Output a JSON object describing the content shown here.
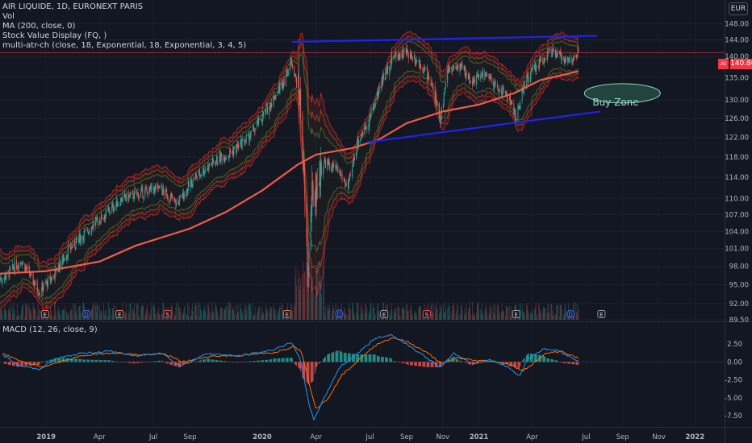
{
  "legend": {
    "symbol": "AIR LIQUIDE, 1D, EURONEXT PARIS",
    "vol": "Vol",
    "ma": "MA (200, close, 0)",
    "svd": "Stock Value Display (FQ, )",
    "mac": "multi-atr-ch (close, 18, Exponential, 18, Exponential, 3, 4, 5)"
  },
  "macd_legend": "MACD (12, 26, close, 9)",
  "currency": "EUR",
  "last_price": "140.86",
  "symbol_tag": "AI",
  "buy_zone_label": "Buy Zone",
  "colors": {
    "background": "#131722",
    "up": "#26a69a",
    "down": "#ef5350",
    "ma": "#f05a4a",
    "trendline": "#2222ee",
    "band_outer": "#c62828",
    "band_inner": "#7a2a20",
    "macd": "#2196f3",
    "signal": "#ff6d00"
  },
  "chart_data": [
    {
      "type": "candlestick",
      "title": "AIR LIQUIDE, 1D, EURONEXT PARIS",
      "y_axis_ticks": [
        "148.00",
        "144.00",
        "140.00",
        "135.00",
        "130.00",
        "126.00",
        "122.00",
        "118.00",
        "114.00",
        "110.00",
        "107.00",
        "104.00",
        "101.00",
        "98.00",
        "95.00",
        "92.00",
        "89.50"
      ],
      "y_log_scale": true,
      "x_axis_ticks": [
        "2019",
        "Apr",
        "Jul",
        "Sep",
        "2020",
        "Apr",
        "Jul",
        "Sep",
        "Nov",
        "2021",
        "Apr",
        "Jul",
        "Sep",
        "Nov",
        "2022"
      ],
      "x_range": [
        "2018-10-15",
        "2022-02-20"
      ],
      "ylim": [
        89.5,
        152
      ],
      "close_path": [
        [
          "2018-10-20",
          96
        ],
        [
          "2018-11-20",
          99
        ],
        [
          "2018-12-20",
          94
        ],
        [
          "2019-01-10",
          96
        ],
        [
          "2019-02-10",
          101
        ],
        [
          "2019-03-10",
          104
        ],
        [
          "2019-04-10",
          107
        ],
        [
          "2019-05-10",
          110
        ],
        [
          "2019-06-10",
          111
        ],
        [
          "2019-07-10",
          112
        ],
        [
          "2019-08-10",
          109
        ],
        [
          "2019-09-10",
          114
        ],
        [
          "2019-10-10",
          117
        ],
        [
          "2019-11-10",
          119
        ],
        [
          "2019-12-10",
          122
        ],
        [
          "2020-01-10",
          128
        ],
        [
          "2020-02-05",
          134
        ],
        [
          "2020-02-20",
          139
        ],
        [
          "2020-03-05",
          130
        ],
        [
          "2020-03-18",
          96
        ],
        [
          "2020-03-25",
          110
        ],
        [
          "2020-04-15",
          117
        ],
        [
          "2020-05-10",
          115
        ],
        [
          "2020-05-25",
          112
        ],
        [
          "2020-06-10",
          121
        ],
        [
          "2020-07-01",
          126
        ],
        [
          "2020-07-20",
          134
        ],
        [
          "2020-08-10",
          140
        ],
        [
          "2020-09-01",
          141
        ],
        [
          "2020-09-20",
          139
        ],
        [
          "2020-10-10",
          135
        ],
        [
          "2020-10-28",
          126
        ],
        [
          "2020-11-10",
          137
        ],
        [
          "2020-11-30",
          138
        ],
        [
          "2020-12-20",
          134
        ],
        [
          "2021-01-10",
          136
        ],
        [
          "2021-01-30",
          133
        ],
        [
          "2021-02-20",
          131
        ],
        [
          "2021-03-05",
          126
        ],
        [
          "2021-03-20",
          134
        ],
        [
          "2021-04-10",
          138
        ],
        [
          "2021-04-30",
          141
        ],
        [
          "2021-05-20",
          140
        ],
        [
          "2021-06-08",
          139
        ],
        [
          "2021-06-18",
          141
        ]
      ],
      "ma200_path": [
        [
          "2018-10-15",
          96.8
        ],
        [
          "2019-01-01",
          97.2
        ],
        [
          "2019-04-01",
          98.8
        ],
        [
          "2019-06-01",
          101.5
        ],
        [
          "2019-09-01",
          104.5
        ],
        [
          "2019-11-01",
          107.5
        ],
        [
          "2020-01-01",
          111.5
        ],
        [
          "2020-03-01",
          116.5
        ],
        [
          "2020-04-01",
          118.5
        ],
        [
          "2020-06-01",
          119.8
        ],
        [
          "2020-07-15",
          121.5
        ],
        [
          "2020-09-01",
          125
        ],
        [
          "2020-11-01",
          127.5
        ],
        [
          "2021-01-01",
          129
        ],
        [
          "2021-03-01",
          131.5
        ],
        [
          "2021-04-15",
          134.5
        ],
        [
          "2021-06-18",
          136.5
        ]
      ],
      "trendlines": [
        {
          "from": [
            "2020-02-20",
            143.5
          ],
          "to": [
            "2021-07-20",
            145.0
          ]
        },
        {
          "from": [
            "2020-06-25",
            121.0
          ],
          "to": [
            "2021-07-25",
            127.5
          ]
        }
      ],
      "annotation": {
        "text": "Buy Zone",
        "at": [
          "2021-08-15",
          131.5
        ]
      }
    },
    {
      "type": "line",
      "title": "MACD (12, 26, close, 9)",
      "y_axis_ticks": [
        "2.50",
        "0.00",
        "-2.50",
        "-5.00",
        "-7.50"
      ],
      "ylim": [
        -8.5,
        4.2
      ],
      "macd_path": [
        [
          "2018-10-20",
          1.0
        ],
        [
          "2018-11-15",
          -0.5
        ],
        [
          "2018-12-20",
          -1.0
        ],
        [
          "2019-01-20",
          0.5
        ],
        [
          "2019-03-01",
          1.2
        ],
        [
          "2019-04-20",
          1.5
        ],
        [
          "2019-06-01",
          0.8
        ],
        [
          "2019-07-15",
          1.3
        ],
        [
          "2019-08-15",
          -0.6
        ],
        [
          "2019-10-01",
          1.2
        ],
        [
          "2019-11-20",
          0.8
        ],
        [
          "2020-01-15",
          1.6
        ],
        [
          "2020-02-20",
          2.7
        ],
        [
          "2020-03-05",
          0.5
        ],
        [
          "2020-03-20",
          -6.0
        ],
        [
          "2020-03-28",
          -8.0
        ],
        [
          "2020-04-15",
          -5.0
        ],
        [
          "2020-05-10",
          -0.8
        ],
        [
          "2020-06-10",
          1.2
        ],
        [
          "2020-07-10",
          3.3
        ],
        [
          "2020-08-05",
          3.8
        ],
        [
          "2020-09-01",
          2.5
        ],
        [
          "2020-10-01",
          0.8
        ],
        [
          "2020-10-28",
          -0.8
        ],
        [
          "2020-11-20",
          1.2
        ],
        [
          "2020-12-20",
          -0.2
        ],
        [
          "2021-01-20",
          0.3
        ],
        [
          "2021-02-20",
          -0.7
        ],
        [
          "2021-03-10",
          -2.0
        ],
        [
          "2021-03-25",
          0.5
        ],
        [
          "2021-04-20",
          1.8
        ],
        [
          "2021-05-15",
          1.6
        ],
        [
          "2021-06-18",
          0.1
        ]
      ],
      "signal_path": [
        [
          "2018-10-20",
          1.2
        ],
        [
          "2018-11-20",
          0.0
        ],
        [
          "2018-12-25",
          -0.7
        ],
        [
          "2019-01-25",
          0.0
        ],
        [
          "2019-03-05",
          0.9
        ],
        [
          "2019-04-25",
          1.3
        ],
        [
          "2019-06-05",
          1.0
        ],
        [
          "2019-07-20",
          1.1
        ],
        [
          "2019-08-20",
          0.0
        ],
        [
          "2019-10-05",
          0.8
        ],
        [
          "2019-11-25",
          0.9
        ],
        [
          "2020-01-20",
          1.3
        ],
        [
          "2020-02-25",
          2.2
        ],
        [
          "2020-03-08",
          1.3
        ],
        [
          "2020-03-22",
          -3.5
        ],
        [
          "2020-04-01",
          -6.6
        ],
        [
          "2020-04-20",
          -5.2
        ],
        [
          "2020-05-15",
          -1.8
        ],
        [
          "2020-06-15",
          0.5
        ],
        [
          "2020-07-15",
          2.6
        ],
        [
          "2020-08-10",
          3.4
        ],
        [
          "2020-09-05",
          2.7
        ],
        [
          "2020-10-05",
          1.3
        ],
        [
          "2020-11-01",
          -0.3
        ],
        [
          "2020-11-25",
          0.6
        ],
        [
          "2020-12-25",
          0.2
        ],
        [
          "2021-01-25",
          0.1
        ],
        [
          "2021-02-25",
          -0.4
        ],
        [
          "2021-03-15",
          -1.3
        ],
        [
          "2021-03-30",
          -0.4
        ],
        [
          "2021-04-25",
          1.2
        ],
        [
          "2021-05-20",
          1.5
        ],
        [
          "2021-06-18",
          0.5
        ]
      ]
    }
  ],
  "event_markers": [
    {
      "date": "2018-12-30",
      "label": "E"
    },
    {
      "date": "2019-03-10",
      "label": "D"
    },
    {
      "date": "2019-05-05",
      "label": "E"
    },
    {
      "date": "2019-07-25",
      "label": "S"
    },
    {
      "date": "2020-02-12",
      "label": "E"
    },
    {
      "date": "2020-05-10",
      "label": "D"
    },
    {
      "date": "2020-07-25",
      "label": "E"
    },
    {
      "date": "2020-10-05",
      "label": "S"
    },
    {
      "date": "2021-03-05",
      "label": "E"
    },
    {
      "date": "2021-06-05",
      "label": "D"
    },
    {
      "date": "2021-07-27",
      "label": "E"
    }
  ]
}
